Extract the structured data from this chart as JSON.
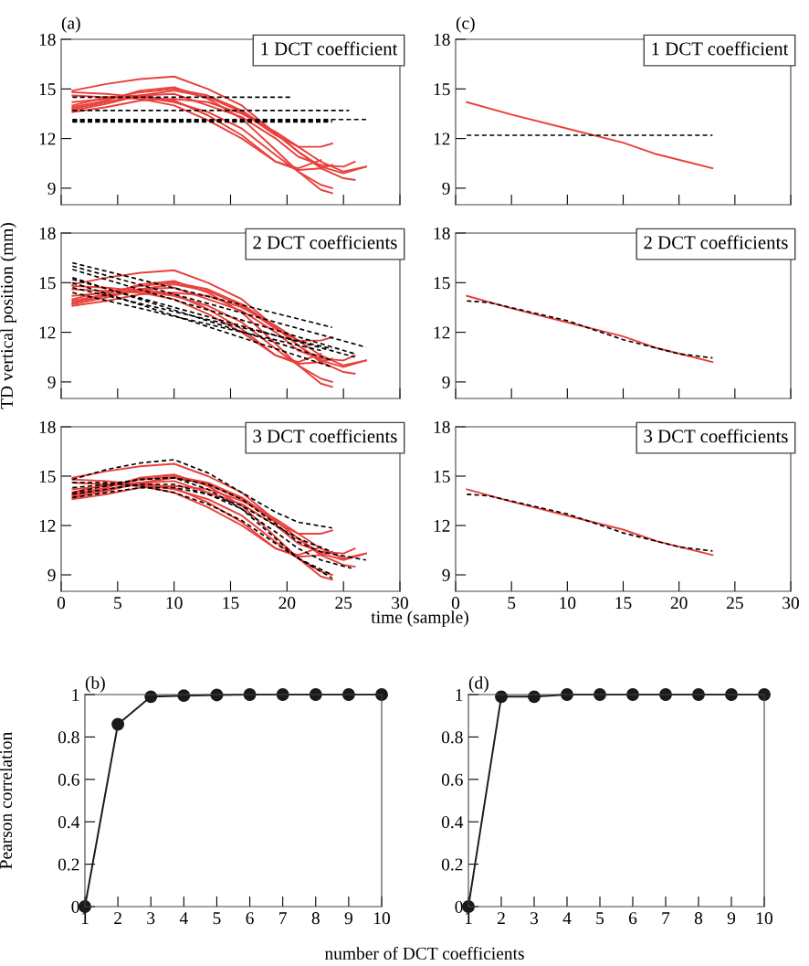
{
  "chart_data": [
    {
      "type": "line",
      "ylabel": null,
      "annotations": [
        "(a)",
        "1 DCT coefficient"
      ],
      "xlim": [
        0,
        30
      ],
      "xticks": [
        0,
        5,
        10,
        15,
        20,
        25,
        30
      ],
      "ylim": [
        8,
        18
      ],
      "yticks": [
        9,
        12,
        15,
        18
      ],
      "tick_labels": "y",
      "line_style": "solid",
      "series": [
        {
          "color": "#e8403c",
          "x": [
            1,
            4,
            7,
            10,
            13,
            16,
            19,
            21,
            23,
            25,
            27
          ],
          "values": [
            14.9,
            15.3,
            15.6,
            15.75,
            15.0,
            14.0,
            12.3,
            11.2,
            10.3,
            9.9,
            10.3
          ]
        },
        {
          "color": "#e8403c",
          "x": [
            1,
            4,
            7,
            10,
            13,
            16,
            19,
            21,
            23,
            24
          ],
          "values": [
            14.8,
            14.7,
            14.5,
            14.2,
            13.6,
            12.6,
            11.0,
            10.0,
            9.2,
            9.0
          ]
        },
        {
          "color": "#e8403c",
          "x": [
            1,
            4,
            7,
            10,
            13,
            16,
            19,
            21,
            23,
            24
          ],
          "values": [
            13.9,
            14.3,
            14.9,
            15.1,
            14.4,
            13.2,
            11.3,
            10.0,
            8.9,
            8.7
          ]
        },
        {
          "color": "#e8403c",
          "x": [
            1,
            4,
            7,
            10,
            13,
            16,
            19,
            21,
            23,
            24
          ],
          "values": [
            13.7,
            14.1,
            14.6,
            14.9,
            14.5,
            13.6,
            12.2,
            11.5,
            11.5,
            11.7
          ]
        },
        {
          "color": "#e8403c",
          "x": [
            1,
            4,
            7,
            10,
            13,
            16,
            19,
            21,
            23,
            25,
            26
          ],
          "values": [
            14.2,
            14.4,
            14.8,
            15.0,
            14.6,
            13.7,
            12.3,
            11.2,
            10.2,
            9.6,
            9.5
          ]
        },
        {
          "color": "#e8403c",
          "x": [
            1,
            4,
            7,
            10,
            13,
            16,
            19,
            21,
            23,
            25,
            26
          ],
          "values": [
            13.8,
            14.2,
            14.6,
            14.7,
            14.0,
            13.3,
            12.0,
            10.9,
            10.4,
            10.3,
            10.6
          ]
        },
        {
          "color": "#e8403c",
          "x": [
            1,
            4,
            7,
            10,
            13,
            16,
            19,
            21,
            23
          ],
          "values": [
            14.0,
            14.5,
            14.6,
            14.3,
            13.4,
            12.2,
            10.6,
            10.2,
            10.7
          ]
        },
        {
          "color": "#e8403c",
          "x": [
            1,
            4,
            7,
            10,
            13,
            16,
            19,
            21,
            23,
            24
          ],
          "values": [
            14.6,
            14.5,
            14.4,
            14.0,
            13.1,
            12.0,
            10.6,
            10.1,
            10.2,
            10.4
          ]
        },
        {
          "color": "#e8403c",
          "x": [
            1,
            4,
            7,
            10,
            13,
            16,
            19,
            21,
            23,
            25,
            27
          ],
          "values": [
            13.6,
            13.9,
            14.3,
            14.4,
            14.2,
            13.5,
            12.4,
            11.5,
            10.6,
            10.0,
            10.3
          ]
        },
        {
          "color": "#000000",
          "line_style": "dashed",
          "x": [
            1,
            20.5
          ],
          "values": [
            14.5,
            14.5
          ]
        },
        {
          "color": "#000000",
          "line_style": "dashed",
          "x": [
            1,
            25.5
          ],
          "values": [
            13.7,
            13.7
          ]
        },
        {
          "color": "#000000",
          "line_style": "dashed",
          "x": [
            1,
            24
          ],
          "values": [
            13.0,
            13.0
          ]
        },
        {
          "color": "#000000",
          "line_style": "dashed",
          "x": [
            1,
            24
          ],
          "values": [
            13.05,
            13.05
          ]
        },
        {
          "color": "#000000",
          "line_style": "dashed",
          "x": [
            1,
            24
          ],
          "values": [
            13.1,
            13.1
          ]
        },
        {
          "color": "#000000",
          "line_style": "dashed",
          "x": [
            1,
            27
          ],
          "values": [
            13.15,
            13.15
          ]
        }
      ]
    },
    {
      "type": "line",
      "annotations": [
        "(c)",
        "1 DCT coefficient"
      ],
      "xlim": [
        0,
        30
      ],
      "xticks": [
        0,
        5,
        10,
        15,
        20,
        25,
        30
      ],
      "ylim": [
        8,
        18
      ],
      "yticks": [
        9,
        12,
        15,
        18
      ],
      "tick_labels": "y",
      "line_style": "solid",
      "series": [
        {
          "color": "#e8403c",
          "x": [
            1,
            5,
            10,
            15,
            18,
            23
          ],
          "values": [
            14.2,
            13.45,
            12.6,
            11.75,
            11.05,
            10.2
          ]
        },
        {
          "color": "#000000",
          "line_style": "dashed",
          "x": [
            1,
            23
          ],
          "values": [
            12.2,
            12.2
          ]
        }
      ]
    },
    {
      "type": "line",
      "ylabel": "TD vertical position (mm)",
      "annotations": [
        "2 DCT coefficients"
      ],
      "xlim": [
        0,
        30
      ],
      "xticks": [
        0,
        5,
        10,
        15,
        20,
        25,
        30
      ],
      "ylim": [
        8,
        18
      ],
      "yticks": [
        9,
        12,
        15,
        18
      ],
      "tick_labels": "y",
      "line_style": "solid",
      "series": [
        {
          "color": "#e8403c",
          "x": [
            1,
            4,
            7,
            10,
            13,
            16,
            19,
            21,
            23,
            25,
            27
          ],
          "values": [
            14.9,
            15.3,
            15.6,
            15.75,
            15.0,
            14.0,
            12.3,
            11.2,
            10.3,
            9.9,
            10.3
          ]
        },
        {
          "color": "#e8403c",
          "x": [
            1,
            4,
            7,
            10,
            13,
            16,
            19,
            21,
            23,
            24
          ],
          "values": [
            14.8,
            14.7,
            14.5,
            14.2,
            13.6,
            12.6,
            11.0,
            10.0,
            9.2,
            9.0
          ]
        },
        {
          "color": "#e8403c",
          "x": [
            1,
            4,
            7,
            10,
            13,
            16,
            19,
            21,
            23,
            24
          ],
          "values": [
            13.9,
            14.3,
            14.9,
            15.1,
            14.4,
            13.2,
            11.3,
            10.0,
            8.9,
            8.7
          ]
        },
        {
          "color": "#e8403c",
          "x": [
            1,
            4,
            7,
            10,
            13,
            16,
            19,
            21,
            23,
            24
          ],
          "values": [
            13.7,
            14.1,
            14.6,
            14.9,
            14.5,
            13.6,
            12.2,
            11.5,
            11.5,
            11.7
          ]
        },
        {
          "color": "#e8403c",
          "x": [
            1,
            4,
            7,
            10,
            13,
            16,
            19,
            21,
            23,
            25,
            26
          ],
          "values": [
            14.2,
            14.4,
            14.8,
            15.0,
            14.6,
            13.7,
            12.3,
            11.2,
            10.2,
            9.6,
            9.5
          ]
        },
        {
          "color": "#e8403c",
          "x": [
            1,
            4,
            7,
            10,
            13,
            16,
            19,
            21,
            23,
            25,
            26
          ],
          "values": [
            13.8,
            14.2,
            14.6,
            14.7,
            14.0,
            13.3,
            12.0,
            10.9,
            10.4,
            10.3,
            10.6
          ]
        },
        {
          "color": "#e8403c",
          "x": [
            1,
            4,
            7,
            10,
            13,
            16,
            19,
            21,
            23
          ],
          "values": [
            14.0,
            14.5,
            14.6,
            14.3,
            13.4,
            12.2,
            10.6,
            10.2,
            10.7
          ]
        },
        {
          "color": "#e8403c",
          "x": [
            1,
            4,
            7,
            10,
            13,
            16,
            19,
            21,
            23,
            24
          ],
          "values": [
            14.6,
            14.5,
            14.4,
            14.0,
            13.1,
            12.0,
            10.6,
            10.1,
            10.2,
            10.4
          ]
        },
        {
          "color": "#e8403c",
          "x": [
            1,
            4,
            7,
            10,
            13,
            16,
            19,
            21,
            23,
            25,
            27
          ],
          "values": [
            13.6,
            13.9,
            14.3,
            14.4,
            14.2,
            13.5,
            12.4,
            11.5,
            10.6,
            10.0,
            10.3
          ]
        },
        {
          "color": "#000000",
          "line_style": "dashed",
          "x": [
            1,
            24
          ],
          "values": [
            16.2,
            12.3
          ]
        },
        {
          "color": "#000000",
          "line_style": "dashed",
          "x": [
            1,
            27
          ],
          "values": [
            16.0,
            11.1
          ]
        },
        {
          "color": "#000000",
          "line_style": "dashed",
          "x": [
            1,
            26
          ],
          "values": [
            15.8,
            10.7
          ]
        },
        {
          "color": "#000000",
          "line_style": "dashed",
          "x": [
            1,
            24
          ],
          "values": [
            15.3,
            10.3
          ]
        },
        {
          "color": "#000000",
          "line_style": "dashed",
          "x": [
            1,
            24
          ],
          "values": [
            15.0,
            9.9
          ]
        },
        {
          "color": "#000000",
          "line_style": "dashed",
          "x": [
            1,
            24
          ],
          "values": [
            14.7,
            11.0
          ]
        },
        {
          "color": "#000000",
          "line_style": "dashed",
          "x": [
            1,
            26
          ],
          "values": [
            15.2,
            10.5
          ]
        },
        {
          "color": "#000000",
          "line_style": "dashed",
          "x": [
            1,
            23
          ],
          "values": [
            14.4,
            10.9
          ]
        }
      ]
    },
    {
      "type": "line",
      "annotations": [
        "2 DCT coefficients"
      ],
      "xlim": [
        0,
        30
      ],
      "xticks": [
        0,
        5,
        10,
        15,
        20,
        25,
        30
      ],
      "ylim": [
        8,
        18
      ],
      "yticks": [
        9,
        12,
        15,
        18
      ],
      "tick_labels": "y",
      "line_style": "solid",
      "series": [
        {
          "color": "#e8403c",
          "x": [
            1,
            5,
            10,
            15,
            18,
            23
          ],
          "values": [
            14.2,
            13.45,
            12.6,
            11.75,
            11.05,
            10.2
          ]
        },
        {
          "color": "#000000",
          "line_style": "dashed",
          "x": [
            1,
            3,
            10,
            15,
            20,
            23
          ],
          "values": [
            13.9,
            13.8,
            12.7,
            11.55,
            10.7,
            10.45
          ]
        }
      ]
    },
    {
      "type": "line",
      "xlabel": "time (sample)",
      "annotations": [
        "3 DCT coefficients"
      ],
      "xlim": [
        0,
        30
      ],
      "xticks": [
        0,
        5,
        10,
        15,
        20,
        25,
        30
      ],
      "ylim": [
        8,
        18
      ],
      "yticks": [
        9,
        12,
        15,
        18
      ],
      "line_style": "solid",
      "series": [
        {
          "color": "#e8403c",
          "x": [
            1,
            4,
            7,
            10,
            13,
            16,
            19,
            21,
            23,
            25,
            27
          ],
          "values": [
            14.9,
            15.3,
            15.6,
            15.75,
            15.0,
            14.0,
            12.3,
            11.2,
            10.3,
            9.9,
            10.3
          ]
        },
        {
          "color": "#e8403c",
          "x": [
            1,
            4,
            7,
            10,
            13,
            16,
            19,
            21,
            23,
            24
          ],
          "values": [
            14.8,
            14.7,
            14.5,
            14.2,
            13.6,
            12.6,
            11.0,
            10.0,
            9.2,
            9.0
          ]
        },
        {
          "color": "#e8403c",
          "x": [
            1,
            4,
            7,
            10,
            13,
            16,
            19,
            21,
            23,
            24
          ],
          "values": [
            13.9,
            14.3,
            14.9,
            15.1,
            14.4,
            13.2,
            11.3,
            10.0,
            8.9,
            8.7
          ]
        },
        {
          "color": "#e8403c",
          "x": [
            1,
            4,
            7,
            10,
            13,
            16,
            19,
            21,
            23,
            24
          ],
          "values": [
            13.7,
            14.1,
            14.6,
            14.9,
            14.5,
            13.6,
            12.2,
            11.5,
            11.5,
            11.7
          ]
        },
        {
          "color": "#e8403c",
          "x": [
            1,
            4,
            7,
            10,
            13,
            16,
            19,
            21,
            23,
            25,
            26
          ],
          "values": [
            14.2,
            14.4,
            14.8,
            15.0,
            14.6,
            13.7,
            12.3,
            11.2,
            10.2,
            9.6,
            9.5
          ]
        },
        {
          "color": "#e8403c",
          "x": [
            1,
            4,
            7,
            10,
            13,
            16,
            19,
            21,
            23,
            25,
            26
          ],
          "values": [
            13.8,
            14.2,
            14.6,
            14.7,
            14.0,
            13.3,
            12.0,
            10.9,
            10.4,
            10.3,
            10.6
          ]
        },
        {
          "color": "#e8403c",
          "x": [
            1,
            4,
            7,
            10,
            13,
            16,
            19,
            21,
            23
          ],
          "values": [
            14.0,
            14.5,
            14.6,
            14.3,
            13.4,
            12.2,
            10.6,
            10.2,
            10.7
          ]
        },
        {
          "color": "#e8403c",
          "x": [
            1,
            4,
            7,
            10,
            13,
            16,
            19,
            21,
            23,
            24
          ],
          "values": [
            14.6,
            14.5,
            14.4,
            14.0,
            13.1,
            12.0,
            10.6,
            10.1,
            10.2,
            10.4
          ]
        },
        {
          "color": "#e8403c",
          "x": [
            1,
            4,
            7,
            10,
            13,
            16,
            19,
            21,
            23,
            25,
            27
          ],
          "values": [
            13.6,
            13.9,
            14.3,
            14.4,
            14.2,
            13.5,
            12.4,
            11.5,
            10.6,
            10.0,
            10.3
          ]
        },
        {
          "color": "#000000",
          "line_style": "dashed",
          "x": [
            1,
            4,
            7,
            10,
            13,
            16,
            19,
            21,
            24
          ],
          "values": [
            14.8,
            15.4,
            15.8,
            16.0,
            15.2,
            14.0,
            12.8,
            12.2,
            11.85
          ]
        },
        {
          "color": "#000000",
          "line_style": "dashed",
          "x": [
            1,
            4,
            7,
            10,
            13,
            16,
            19,
            21,
            24
          ],
          "values": [
            14.6,
            14.6,
            14.4,
            14.0,
            13.3,
            12.3,
            10.9,
            10.0,
            9.0
          ]
        },
        {
          "color": "#000000",
          "line_style": "dashed",
          "x": [
            1,
            4,
            7,
            10,
            13,
            16,
            19,
            21,
            24
          ],
          "values": [
            14.0,
            14.4,
            14.8,
            14.9,
            14.2,
            13.0,
            11.2,
            10.0,
            8.8
          ]
        },
        {
          "color": "#000000",
          "line_style": "dashed",
          "x": [
            1,
            4,
            7,
            10,
            13,
            16,
            19,
            21,
            23,
            27
          ],
          "values": [
            14.3,
            14.5,
            14.8,
            14.9,
            14.5,
            13.6,
            12.1,
            11.0,
            10.4,
            9.9
          ]
        },
        {
          "color": "#000000",
          "line_style": "dashed",
          "x": [
            1,
            4,
            7,
            10,
            13,
            16,
            19,
            21,
            23,
            25.7
          ],
          "values": [
            13.9,
            14.2,
            14.5,
            14.5,
            13.9,
            13.0,
            11.6,
            10.6,
            9.9,
            9.4
          ]
        },
        {
          "color": "#000000",
          "line_style": "dashed",
          "x": [
            1,
            4,
            7,
            10,
            13,
            16,
            19,
            21,
            24
          ],
          "values": [
            13.7,
            14.0,
            14.3,
            14.3,
            13.9,
            13.2,
            12.0,
            11.2,
            10.4
          ]
        }
      ]
    },
    {
      "type": "line",
      "annotations": [
        "3 DCT coefficients"
      ],
      "xlim": [
        0,
        30
      ],
      "xticks": [
        0,
        5,
        10,
        15,
        20,
        25,
        30
      ],
      "ylim": [
        8,
        18
      ],
      "yticks": [
        9,
        12,
        15,
        18
      ],
      "line_style": "solid",
      "series": [
        {
          "color": "#e8403c",
          "x": [
            1,
            5,
            10,
            15,
            18,
            23
          ],
          "values": [
            14.2,
            13.45,
            12.6,
            11.75,
            11.05,
            10.2
          ]
        },
        {
          "color": "#000000",
          "line_style": "dashed",
          "x": [
            1,
            3,
            10,
            15,
            20,
            23
          ],
          "values": [
            13.9,
            13.8,
            12.7,
            11.55,
            10.7,
            10.45
          ]
        }
      ]
    },
    {
      "type": "line",
      "ylabel": "Pearson correlation",
      "xlabel": "number of DCT coefficients",
      "annotations": [
        "(b)"
      ],
      "xlim": [
        1,
        10
      ],
      "xticks": [
        1,
        2,
        3,
        4,
        5,
        6,
        7,
        8,
        9,
        10
      ],
      "ylim": [
        0,
        1
      ],
      "yticks": [
        0,
        0.2,
        0.4,
        0.6,
        0.8,
        1
      ],
      "marker": "circle",
      "line_style": "solid",
      "series": [
        {
          "color": "#1a1a1a",
          "x": [
            1,
            2,
            3,
            4,
            5,
            6,
            7,
            8,
            9,
            10
          ],
          "values": [
            0,
            0.86,
            0.99,
            0.995,
            0.998,
            1,
            1,
            1,
            1,
            1
          ]
        }
      ]
    },
    {
      "type": "line",
      "annotations": [
        "(d)"
      ],
      "xlim": [
        1,
        10
      ],
      "xticks": [
        1,
        2,
        3,
        4,
        5,
        6,
        7,
        8,
        9,
        10
      ],
      "ylim": [
        0,
        1
      ],
      "yticks": [
        0,
        0.2,
        0.4,
        0.6,
        0.8,
        1
      ],
      "marker": "circle",
      "line_style": "solid",
      "series": [
        {
          "color": "#1a1a1a",
          "x": [
            1,
            2,
            3,
            4,
            5,
            6,
            7,
            8,
            9,
            10
          ],
          "values": [
            0,
            0.99,
            0.99,
            1,
            1,
            1,
            1,
            1,
            1,
            1
          ]
        }
      ]
    }
  ]
}
